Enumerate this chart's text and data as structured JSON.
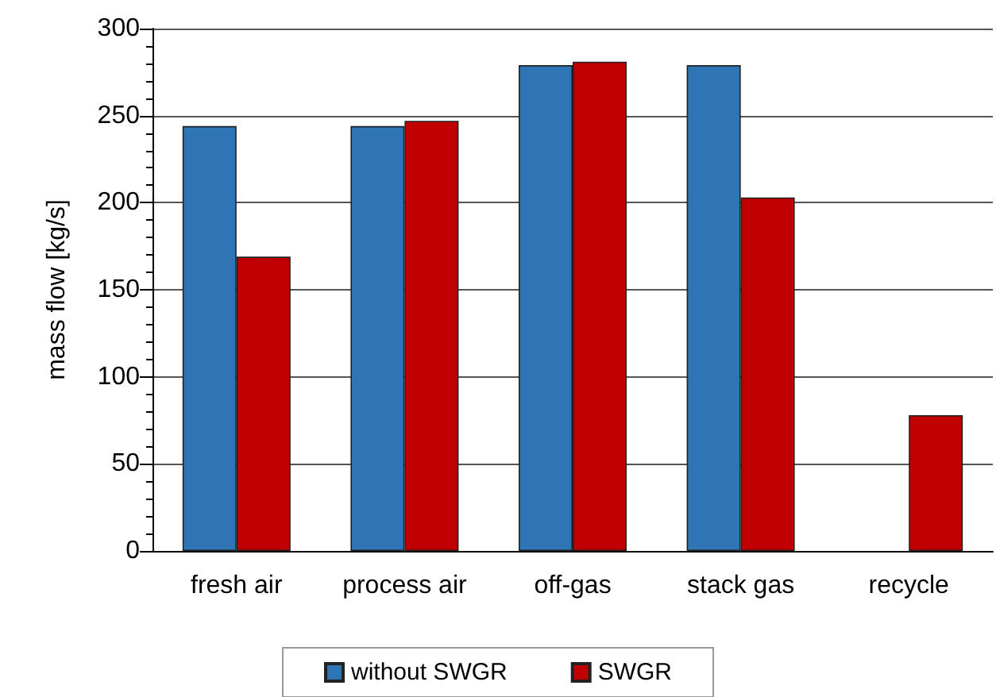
{
  "chart_data": {
    "type": "bar",
    "ylabel": "mass flow [kg/s]",
    "categories": [
      "fresh air",
      "process air",
      "off-gas",
      "stack gas",
      "recycle"
    ],
    "series": [
      {
        "name": "without SWGR",
        "color": "#2e75b6",
        "values": [
          244,
          244,
          279,
          279,
          null
        ]
      },
      {
        "name": "SWGR",
        "color": "#c00000",
        "values": [
          169,
          247,
          281,
          203,
          78
        ]
      }
    ],
    "ylim": [
      0,
      300
    ],
    "yticks": [
      0,
      {
        "value": 10,
        "label": null
      },
      {
        "value": 20,
        "label": null
      },
      {
        "value": 30,
        "label": null
      },
      {
        "value": 40,
        "label": null
      },
      50,
      {
        "value": 60,
        "label": null
      },
      {
        "value": 70,
        "label": null
      },
      {
        "value": 80,
        "label": null
      },
      {
        "value": 90,
        "label": null
      },
      100,
      {
        "value": 110,
        "label": null
      },
      {
        "value": 120,
        "label": null
      },
      {
        "value": 130,
        "label": null
      },
      {
        "value": 140,
        "label": null
      },
      150,
      {
        "value": 160,
        "label": null
      },
      {
        "value": 170,
        "label": null
      },
      {
        "value": 180,
        "label": null
      },
      {
        "value": 190,
        "label": null
      },
      200,
      {
        "value": 210,
        "label": null
      },
      {
        "value": 220,
        "label": null
      },
      {
        "value": 230,
        "label": null
      },
      {
        "value": 240,
        "label": null
      },
      250,
      {
        "value": 260,
        "label": null
      },
      {
        "value": 270,
        "label": null
      },
      {
        "value": 280,
        "label": null
      },
      {
        "value": 290,
        "label": null
      },
      300
    ],
    "grid": "y",
    "legend": "bottom"
  }
}
